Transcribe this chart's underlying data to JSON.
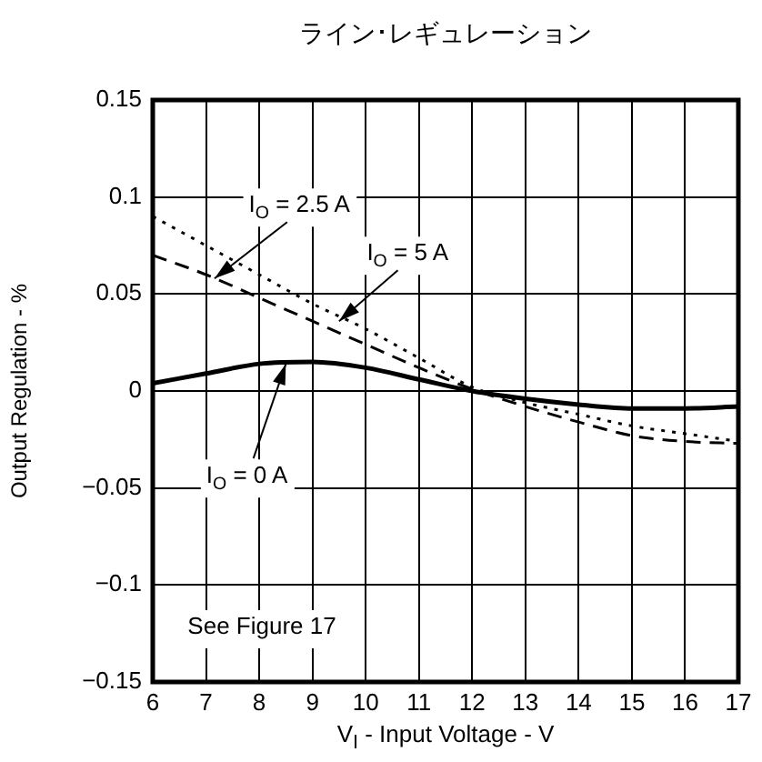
{
  "chart_data": {
    "type": "line",
    "title": "ライン･レギュレーション",
    "xlabel": "V$_{I}$ - Input Voltage - V",
    "ylabel": "Output Regulation - %",
    "x": [
      6,
      7,
      8,
      9,
      10,
      11,
      12,
      13,
      14,
      15,
      16,
      17
    ],
    "series": [
      {
        "color": "#000000",
        "line_style": "dashed",
        "values": [
          0.07,
          0.06,
          0.048,
          0.036,
          0.024,
          0.012,
          0.001,
          -0.008,
          -0.016,
          -0.023,
          -0.026,
          -0.027
        ]
      },
      {
        "color": "#000000",
        "line_style": "dotted",
        "values": [
          0.09,
          0.075,
          0.06,
          0.045,
          0.032,
          0.017,
          0.002,
          -0.006,
          -0.012,
          -0.018,
          -0.022,
          -0.026
        ]
      },
      {
        "color": "#000000",
        "line_style": "solid",
        "values": [
          0.004,
          0.009,
          0.014,
          0.015,
          0.012,
          0.006,
          0.0,
          -0.004,
          -0.007,
          -0.009,
          -0.009,
          -0.008
        ]
      }
    ],
    "xlim": [
      6,
      17
    ],
    "xticks": [
      6,
      7,
      8,
      9,
      10,
      11,
      12,
      13,
      14,
      15,
      16,
      17
    ],
    "ylim": [
      -0.15,
      0.15
    ],
    "yticks": [
      {
        "value": -0.15,
        "label": "−0.15"
      },
      {
        "value": -0.1,
        "label": "−0.1"
      },
      {
        "value": -0.05,
        "label": "−0.05"
      },
      0,
      0.05,
      0.1,
      0.15
    ],
    "grid": true,
    "marker": "none",
    "annotations": [
      {
        "text": "I$_{O}$ = 2.5 A",
        "x": 7.16,
        "y": 0.058
      },
      {
        "text": "I$_{O}$ = 5 A",
        "x": 9.5,
        "y": 0.036
      },
      {
        "text": "I$_{O}$ = 0 A",
        "x": 8.5,
        "y": 0.014
      },
      "See Figure 17"
    ]
  }
}
